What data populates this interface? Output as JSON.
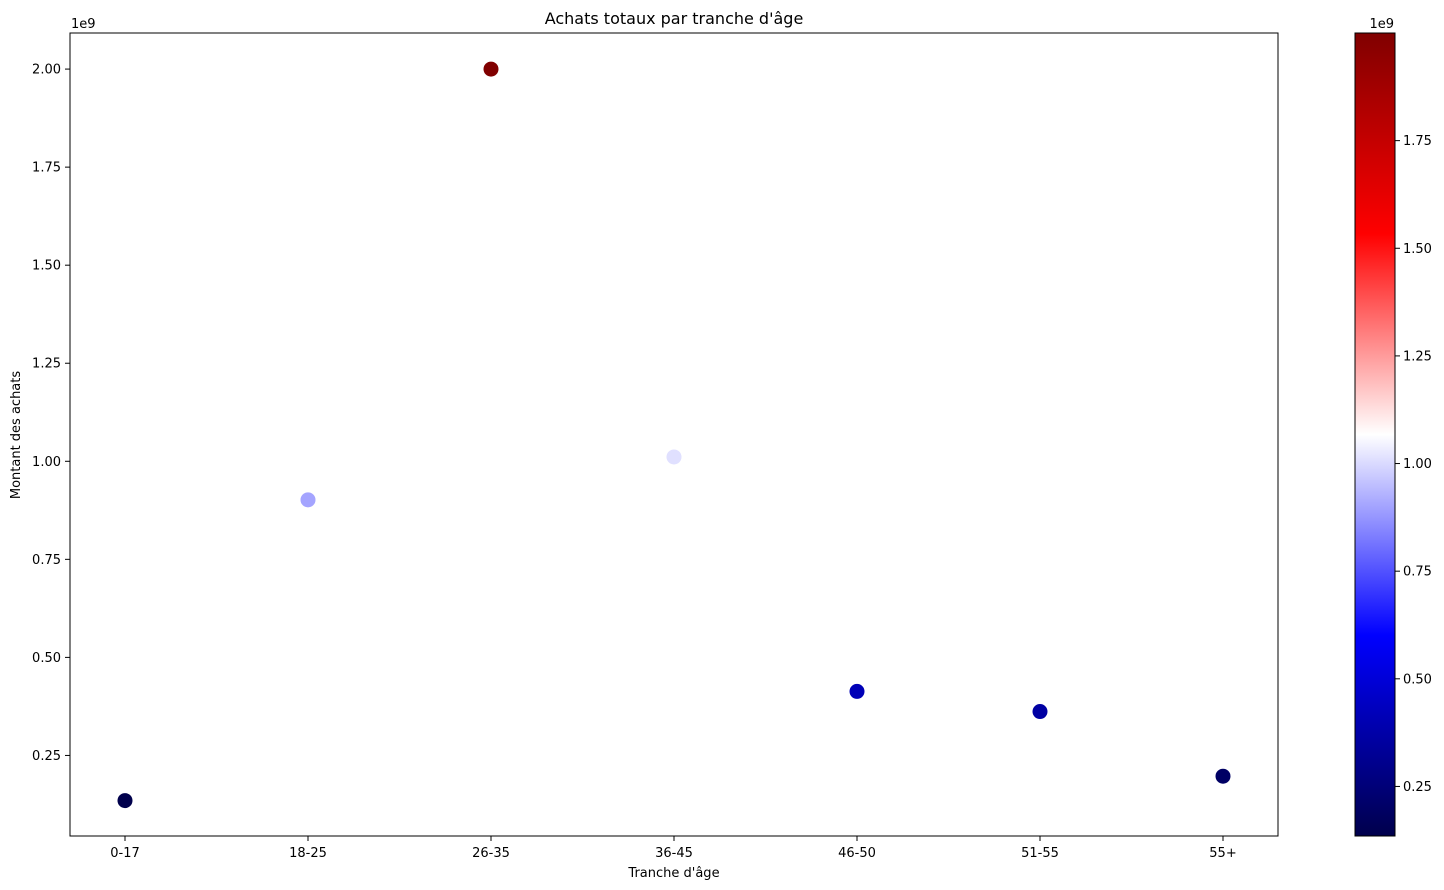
{
  "chart_data": {
    "type": "scatter",
    "title": "Achats totaux par tranche d'âge",
    "xlabel": "Tranche d'âge",
    "ylabel": "Montant des achats",
    "y_offset_label": "1e9",
    "categories": [
      "0-17",
      "18-25",
      "26-35",
      "36-45",
      "46-50",
      "51-55",
      "55+"
    ],
    "values": [
      134900000,
      901700000,
      2000000000,
      1011000000,
      413300000,
      362000000,
      197000000
    ],
    "ylim": [
      44600000,
      2092000000
    ],
    "yticks": [
      0.25,
      0.5,
      0.75,
      1.0,
      1.25,
      1.5,
      1.75,
      2.0
    ],
    "yticks_scale": 1000000000,
    "colorbar": {
      "colormap": "seismic",
      "range": [
        134900000,
        2000000000
      ],
      "offset_label": "1e9",
      "ticks": [
        0.25,
        0.5,
        0.75,
        1.0,
        1.25,
        1.5,
        1.75
      ],
      "ticks_scale": 1000000000,
      "colors": [
        "#00004c",
        "#0000ff",
        "#ffffff",
        "#ff0000",
        "#800000"
      ]
    },
    "grid": false,
    "legend": "none"
  }
}
